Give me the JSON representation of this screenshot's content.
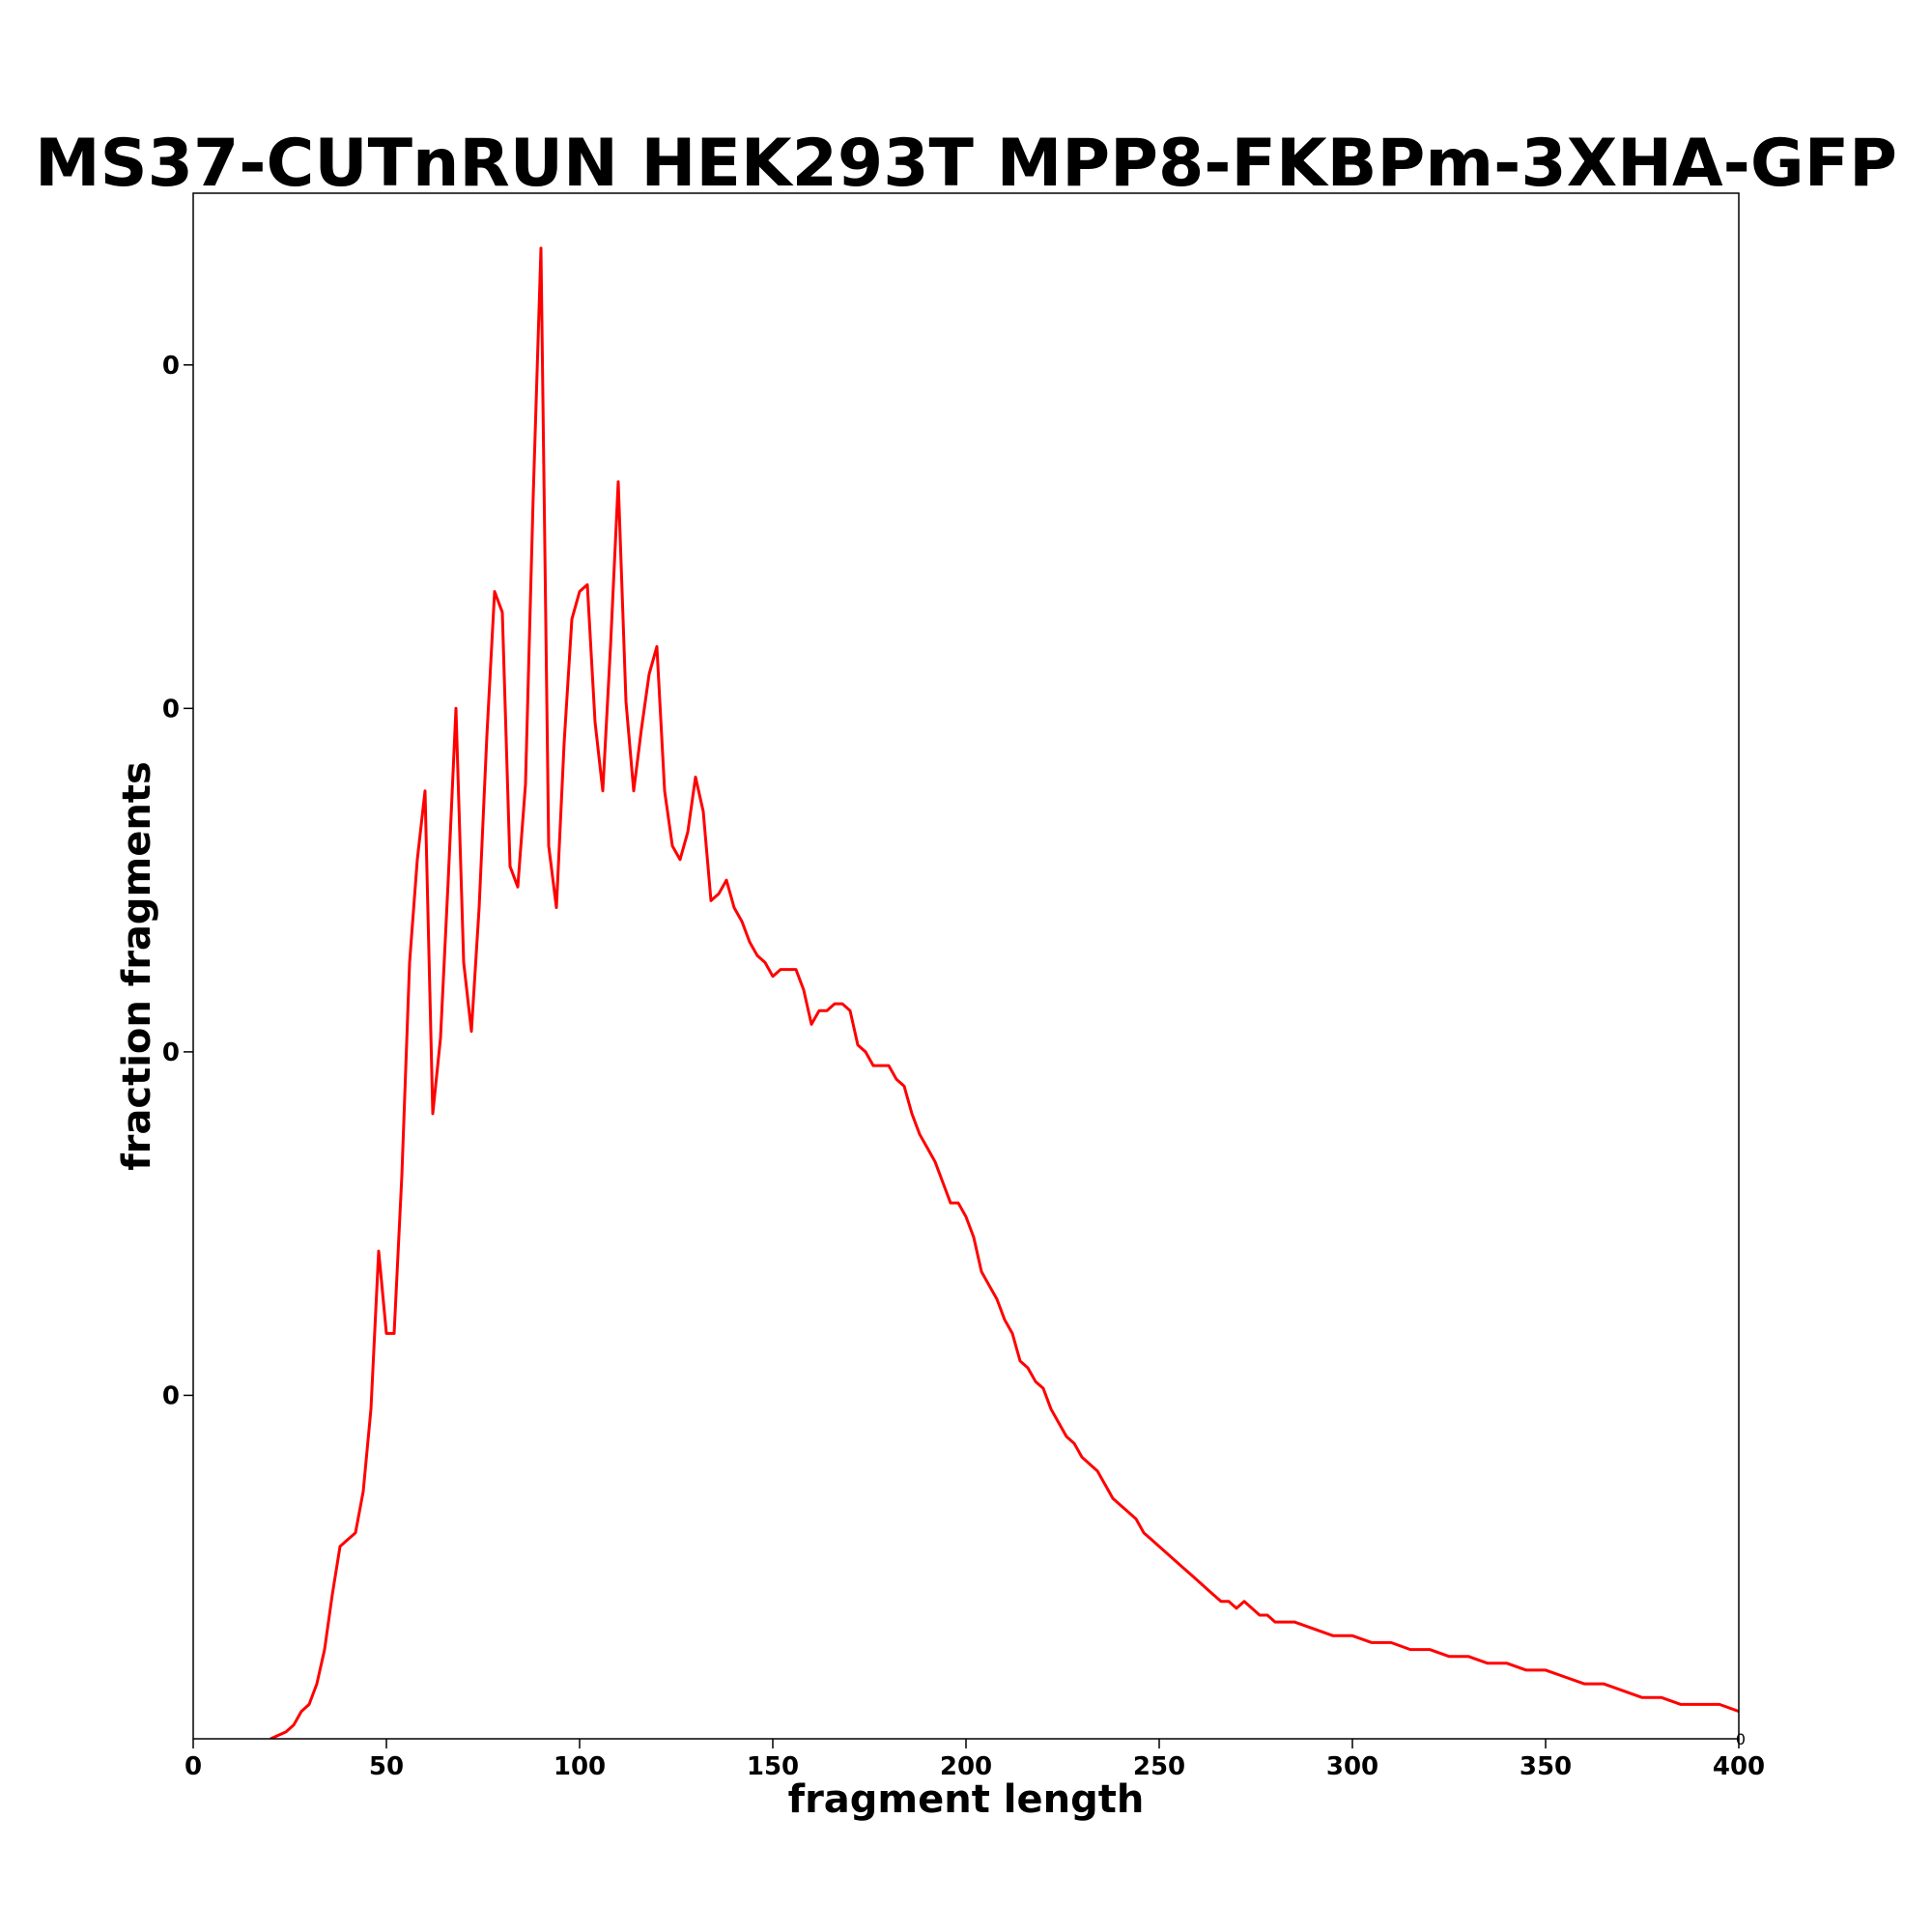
{
  "chart_data": {
    "type": "line",
    "title": "MS37-CUTnRUN HEK293T MPP8-FKBPm-3XHA-GFP",
    "xlabel": "fragment length",
    "ylabel": "fraction fragments",
    "xlim": [
      0,
      400
    ],
    "ylim": [
      0,
      0.0225
    ],
    "x_ticks": [
      0,
      50,
      100,
      150,
      200,
      250,
      300,
      350,
      400
    ],
    "y_ticks": [
      {
        "value": 0.005,
        "label": "0"
      },
      {
        "value": 0.01,
        "label": "0"
      },
      {
        "value": 0.015,
        "label": "0"
      },
      {
        "value": 0.02,
        "label": "0"
      }
    ],
    "corner_label": "0",
    "grid": false,
    "legend": "none",
    "series": [
      {
        "color": "#ff0000",
        "x": [
          20,
          24,
          26,
          28,
          30,
          32,
          34,
          36,
          38,
          40,
          42,
          44,
          46,
          48,
          50,
          52,
          54,
          56,
          58,
          60,
          62,
          64,
          66,
          68,
          70,
          72,
          74,
          76,
          78,
          80,
          82,
          84,
          86,
          88,
          90,
          92,
          94,
          96,
          98,
          100,
          102,
          104,
          106,
          108,
          110,
          112,
          114,
          116,
          118,
          120,
          122,
          124,
          126,
          128,
          130,
          132,
          134,
          136,
          138,
          140,
          142,
          144,
          146,
          148,
          150,
          152,
          154,
          156,
          158,
          160,
          162,
          164,
          166,
          168,
          170,
          172,
          174,
          176,
          178,
          180,
          182,
          184,
          186,
          188,
          190,
          192,
          194,
          196,
          198,
          200,
          202,
          204,
          206,
          208,
          210,
          212,
          214,
          216,
          218,
          220,
          222,
          224,
          226,
          228,
          230,
          232,
          234,
          236,
          238,
          240,
          242,
          244,
          246,
          248,
          250,
          252,
          254,
          256,
          258,
          260,
          262,
          264,
          266,
          268,
          270,
          272,
          274,
          276,
          278,
          280,
          285,
          290,
          295,
          300,
          305,
          310,
          315,
          320,
          325,
          330,
          335,
          340,
          345,
          350,
          355,
          360,
          365,
          370,
          375,
          380,
          385,
          390,
          395,
          400
        ],
        "y": [
          0.0,
          0.0001,
          0.0002,
          0.0004,
          0.0005,
          0.0008,
          0.0013,
          0.0021,
          0.0028,
          0.0029,
          0.003,
          0.0036,
          0.0048,
          0.0071,
          0.0059,
          0.0059,
          0.0082,
          0.0113,
          0.0128,
          0.0138,
          0.0091,
          0.0102,
          0.0125,
          0.015,
          0.0113,
          0.0103,
          0.0121,
          0.0146,
          0.0167,
          0.0164,
          0.0127,
          0.0124,
          0.0139,
          0.0181,
          0.0217,
          0.013,
          0.0121,
          0.0145,
          0.0163,
          0.0167,
          0.0168,
          0.0148,
          0.0138,
          0.0159,
          0.0183,
          0.0151,
          0.0138,
          0.0147,
          0.0155,
          0.0159,
          0.0138,
          0.013,
          0.0128,
          0.0132,
          0.014,
          0.0135,
          0.0122,
          0.0123,
          0.0125,
          0.0121,
          0.0119,
          0.0116,
          0.0114,
          0.0113,
          0.0111,
          0.0112,
          0.0112,
          0.0112,
          0.0109,
          0.0104,
          0.0106,
          0.0106,
          0.0107,
          0.0107,
          0.0106,
          0.0101,
          0.01,
          0.0098,
          0.0098,
          0.0098,
          0.0096,
          0.0095,
          0.0091,
          0.0088,
          0.0086,
          0.0084,
          0.0081,
          0.0078,
          0.0078,
          0.0076,
          0.0073,
          0.0068,
          0.0066,
          0.0064,
          0.0061,
          0.0059,
          0.0055,
          0.0054,
          0.0052,
          0.0051,
          0.0048,
          0.0046,
          0.0044,
          0.0043,
          0.0041,
          0.004,
          0.0039,
          0.0037,
          0.0035,
          0.0034,
          0.0033,
          0.0032,
          0.003,
          0.0029,
          0.0028,
          0.0027,
          0.0026,
          0.0025,
          0.0024,
          0.0023,
          0.0022,
          0.0021,
          0.002,
          0.002,
          0.0019,
          0.002,
          0.0019,
          0.0018,
          0.0018,
          0.0017,
          0.0017,
          0.0016,
          0.0015,
          0.0015,
          0.0014,
          0.0014,
          0.0013,
          0.0013,
          0.0012,
          0.0012,
          0.0011,
          0.0011,
          0.001,
          0.001,
          0.0009,
          0.0008,
          0.0008,
          0.0007,
          0.0006,
          0.0006,
          0.0005,
          0.0005,
          0.0005,
          0.0004
        ]
      }
    ]
  }
}
